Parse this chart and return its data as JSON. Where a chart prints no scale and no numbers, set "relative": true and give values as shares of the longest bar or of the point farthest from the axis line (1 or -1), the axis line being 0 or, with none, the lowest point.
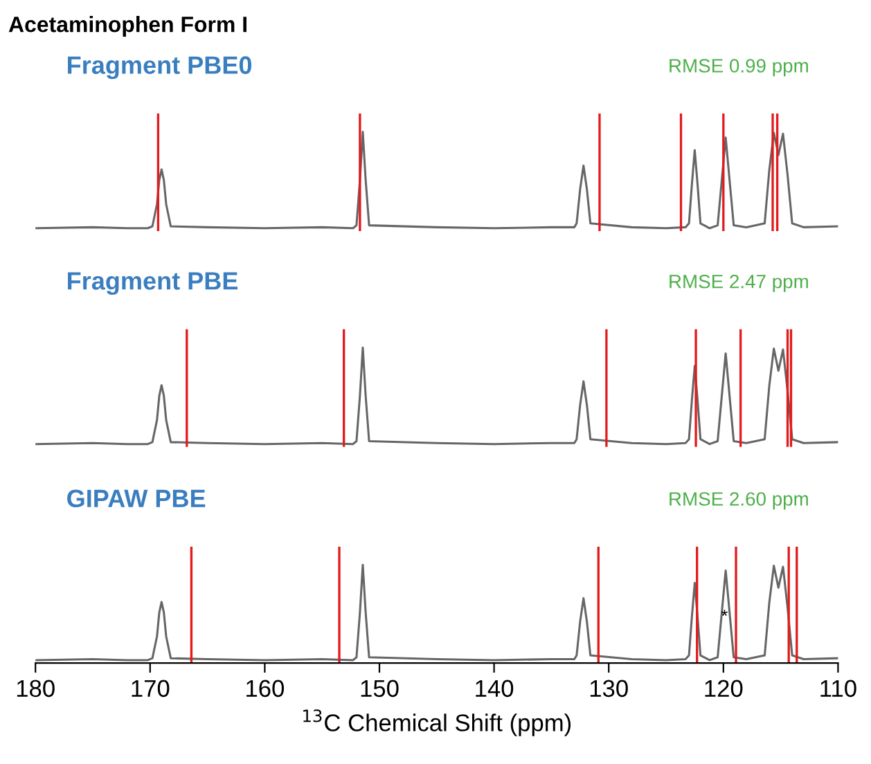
{
  "chart_data": [
    {
      "type": "line",
      "title": "Acetaminophen Form I",
      "subtitle": "Fragment PBE0",
      "relative": true,
      "xlim": [
        180,
        110
      ],
      "tick_labels": false,
      "annotations": [
        "RMSE 0.99 ppm"
      ],
      "series": [
        {
          "color": "#666666",
          "x": [
            180,
            175,
            172,
            170.2,
            169.8,
            169.4,
            169.2,
            169.0,
            168.8,
            168.6,
            168.2,
            165,
            160,
            155,
            152.3,
            152.0,
            151.7,
            151.45,
            151.2,
            150.9,
            145,
            140,
            135,
            133.0,
            132.8,
            132.5,
            132.2,
            131.9,
            131.6,
            128,
            125,
            123.3,
            123.0,
            122.75,
            122.5,
            122.25,
            122.0,
            121.2,
            120.5,
            120.1,
            119.8,
            119.5,
            119.1,
            118,
            116.4,
            116.0,
            115.6,
            115.2,
            114.8,
            114.4,
            114.0,
            113,
            110
          ],
          "values": [
            0.0,
            0.01,
            0.0,
            0.0,
            0.02,
            0.25,
            0.5,
            0.61,
            0.5,
            0.25,
            0.02,
            0.01,
            0.0,
            0.01,
            0.0,
            0.03,
            0.5,
            1.0,
            0.5,
            0.03,
            0.01,
            0.0,
            0.01,
            0.01,
            0.05,
            0.4,
            0.65,
            0.4,
            0.05,
            0.01,
            0.0,
            0.01,
            0.05,
            0.45,
            0.81,
            0.45,
            0.05,
            0.0,
            0.03,
            0.55,
            0.94,
            0.55,
            0.03,
            0.01,
            0.05,
            0.6,
            0.99,
            0.76,
            0.98,
            0.55,
            0.05,
            0.01,
            0.02
          ]
        }
      ],
      "ref_lines": [
        {
          "axis": "x",
          "value": 169.3,
          "color": "#e41a1c"
        },
        {
          "axis": "x",
          "value": 151.7,
          "color": "#e41a1c"
        },
        {
          "axis": "x",
          "value": 130.8,
          "color": "#e41a1c"
        },
        {
          "axis": "x",
          "value": 123.7,
          "color": "#e41a1c"
        },
        {
          "axis": "x",
          "value": 120.0,
          "color": "#e41a1c"
        },
        {
          "axis": "x",
          "value": 115.7,
          "color": "#e41a1c"
        },
        {
          "axis": "x",
          "value": 115.3,
          "color": "#e41a1c"
        }
      ]
    },
    {
      "type": "line",
      "subtitle": "Fragment PBE",
      "relative": true,
      "xlim": [
        180,
        110
      ],
      "tick_labels": false,
      "annotations": [
        "RMSE 2.47 ppm"
      ],
      "series": [
        {
          "color": "#666666",
          "x": [
            180,
            175,
            172,
            170.2,
            169.8,
            169.4,
            169.2,
            169.0,
            168.8,
            168.6,
            168.2,
            165,
            160,
            155,
            152.3,
            152.0,
            151.7,
            151.45,
            151.2,
            150.9,
            145,
            140,
            135,
            133.0,
            132.8,
            132.5,
            132.2,
            131.9,
            131.6,
            128,
            125,
            123.3,
            123.0,
            122.75,
            122.5,
            122.25,
            122.0,
            121.2,
            120.5,
            120.1,
            119.8,
            119.5,
            119.1,
            118,
            116.4,
            116.0,
            115.6,
            115.2,
            114.8,
            114.4,
            114.0,
            113,
            110
          ],
          "values": [
            0.0,
            0.01,
            0.0,
            0.0,
            0.02,
            0.25,
            0.5,
            0.61,
            0.5,
            0.25,
            0.02,
            0.01,
            0.0,
            0.01,
            0.0,
            0.03,
            0.5,
            1.0,
            0.5,
            0.03,
            0.01,
            0.0,
            0.01,
            0.01,
            0.05,
            0.4,
            0.65,
            0.4,
            0.05,
            0.01,
            0.0,
            0.01,
            0.05,
            0.45,
            0.81,
            0.45,
            0.05,
            0.0,
            0.03,
            0.55,
            0.94,
            0.55,
            0.03,
            0.01,
            0.05,
            0.6,
            0.99,
            0.76,
            0.98,
            0.55,
            0.05,
            0.01,
            0.02
          ]
        }
      ],
      "ref_lines": [
        {
          "axis": "x",
          "value": 166.8,
          "color": "#e41a1c"
        },
        {
          "axis": "x",
          "value": 153.1,
          "color": "#e41a1c"
        },
        {
          "axis": "x",
          "value": 130.2,
          "color": "#e41a1c"
        },
        {
          "axis": "x",
          "value": 122.4,
          "color": "#e41a1c"
        },
        {
          "axis": "x",
          "value": 118.5,
          "color": "#e41a1c"
        },
        {
          "axis": "x",
          "value": 114.4,
          "color": "#e41a1c"
        },
        {
          "axis": "x",
          "value": 114.1,
          "color": "#e41a1c"
        }
      ]
    },
    {
      "type": "line",
      "subtitle": "GIPAW PBE",
      "relative": true,
      "xlim": [
        180,
        110
      ],
      "xticks": [
        180,
        170,
        160,
        150,
        140,
        130,
        120,
        110
      ],
      "tick_labels": "x",
      "xlabel": "$^{13}$C Chemical Shift (ppm)",
      "annotations": [
        "RMSE 2.60 ppm",
        {
          "text": "*",
          "x": 119.9,
          "y": 0.45
        }
      ],
      "series": [
        {
          "color": "#666666",
          "x": [
            180,
            175,
            172,
            170.2,
            169.8,
            169.4,
            169.2,
            169.0,
            168.8,
            168.6,
            168.2,
            165,
            160,
            155,
            152.3,
            152.0,
            151.7,
            151.45,
            151.2,
            150.9,
            145,
            140,
            135,
            133.0,
            132.8,
            132.5,
            132.2,
            131.9,
            131.6,
            128,
            125,
            123.3,
            123.0,
            122.75,
            122.5,
            122.25,
            122.0,
            121.2,
            120.5,
            120.1,
            119.8,
            119.5,
            119.1,
            118,
            116.4,
            116.0,
            115.6,
            115.2,
            114.8,
            114.4,
            114.0,
            113,
            110
          ],
          "values": [
            0.0,
            0.01,
            0.0,
            0.0,
            0.02,
            0.25,
            0.5,
            0.61,
            0.5,
            0.25,
            0.02,
            0.01,
            0.0,
            0.01,
            0.0,
            0.03,
            0.5,
            1.0,
            0.5,
            0.03,
            0.01,
            0.0,
            0.01,
            0.01,
            0.05,
            0.4,
            0.65,
            0.4,
            0.05,
            0.01,
            0.0,
            0.01,
            0.05,
            0.45,
            0.81,
            0.45,
            0.05,
            0.0,
            0.03,
            0.55,
            0.94,
            0.55,
            0.03,
            0.01,
            0.05,
            0.6,
            0.99,
            0.76,
            0.98,
            0.55,
            0.05,
            0.01,
            0.02
          ]
        }
      ],
      "ref_lines": [
        {
          "axis": "x",
          "value": 166.4,
          "color": "#e41a1c"
        },
        {
          "axis": "x",
          "value": 153.5,
          "color": "#e41a1c"
        },
        {
          "axis": "x",
          "value": 130.9,
          "color": "#e41a1c"
        },
        {
          "axis": "x",
          "value": 122.3,
          "color": "#e41a1c"
        },
        {
          "axis": "x",
          "value": 118.9,
          "color": "#e41a1c"
        },
        {
          "axis": "x",
          "value": 114.3,
          "color": "#e41a1c"
        },
        {
          "axis": "x",
          "value": 113.6,
          "color": "#e41a1c"
        }
      ]
    }
  ]
}
